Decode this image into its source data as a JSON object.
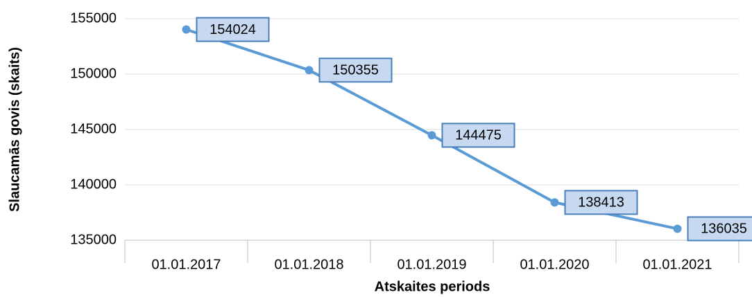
{
  "chart_data": {
    "type": "line",
    "x_label": "Atskaites periods",
    "y_label": "Slaucamās govis (skaits)",
    "categories": [
      "01.01.2017",
      "01.01.2018",
      "01.01.2019",
      "01.01.2020",
      "01.01.2021"
    ],
    "values": [
      154024,
      150355,
      144475,
      138413,
      136035
    ],
    "color": "#5b9bd5",
    "ylim": [
      135000,
      155000
    ],
    "yticks": [
      135000,
      140000,
      145000,
      150000,
      155000
    ],
    "grid": true
  }
}
